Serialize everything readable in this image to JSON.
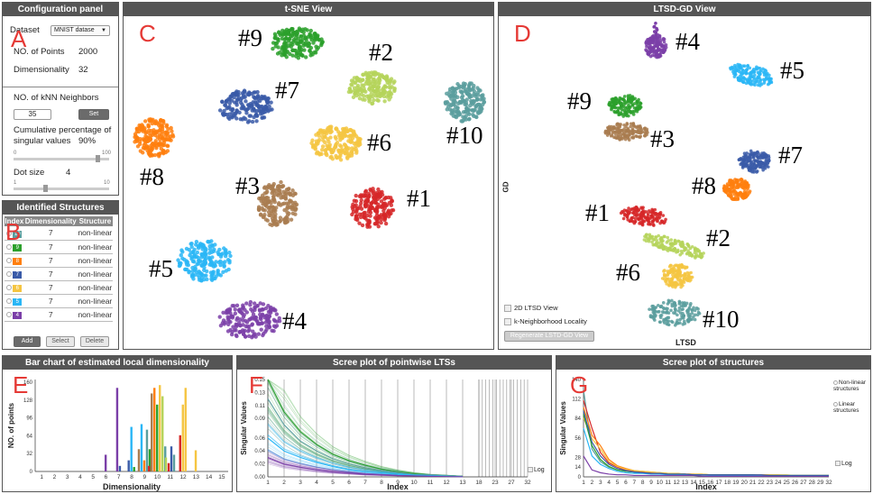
{
  "config": {
    "title": "Configuration panel",
    "dataset_label": "Dataset",
    "dataset_value": "MNIST datase",
    "points_label": "NO. of Points",
    "points_value": "2000",
    "dim_label": "Dimensionality",
    "dim_value": "32",
    "knn_label": "NO. of kNN Neighbors",
    "knn_value": "35",
    "set_label": "Set",
    "cum_label": "Cumulative percentage of singular values",
    "cum_value": "90%",
    "cum_min": "0",
    "cum_max": "100",
    "cum_level": 0.9,
    "dot_label": "Dot size",
    "dot_value": "4",
    "dot_min": "1",
    "dot_max": "10",
    "dot_level": 0.33
  },
  "structures": {
    "title": "Identified Structures",
    "headers": [
      "Index",
      "Dimensionality",
      "Structure"
    ],
    "rows": [
      {
        "idx": "10",
        "color": "#5a9e9e",
        "dim": "7",
        "type": "non-linear"
      },
      {
        "idx": "9",
        "color": "#2ca02c",
        "dim": "7",
        "type": "non-linear"
      },
      {
        "idx": "8",
        "color": "#ff7f0e",
        "dim": "7",
        "type": "non-linear"
      },
      {
        "idx": "7",
        "color": "#3a5ba8",
        "dim": "7",
        "type": "non-linear"
      },
      {
        "idx": "6",
        "color": "#f5c542",
        "dim": "7",
        "type": "non-linear"
      },
      {
        "idx": "5",
        "color": "#29b6f6",
        "dim": "7",
        "type": "non-linear"
      },
      {
        "idx": "4",
        "color": "#7b3fa8",
        "dim": "7",
        "type": "non-linear"
      }
    ],
    "add_label": "Add",
    "select_label": "Select",
    "delete_label": "Delete"
  },
  "tsne": {
    "title": "t-SNE View",
    "clusters": [
      {
        "label": "#9",
        "color": "#2ca02c"
      },
      {
        "label": "#2",
        "color": "#b5d35a"
      },
      {
        "label": "#7",
        "color": "#3a5ba8"
      },
      {
        "label": "#10",
        "color": "#5a9e9e"
      },
      {
        "label": "#6",
        "color": "#f5c542"
      },
      {
        "label": "#8",
        "color": "#ff7f0e"
      },
      {
        "label": "#3",
        "color": "#a97c50"
      },
      {
        "label": "#1",
        "color": "#d62728"
      },
      {
        "label": "#5",
        "color": "#29b6f6"
      },
      {
        "label": "#4",
        "color": "#7b3fa8"
      }
    ]
  },
  "ltsd": {
    "title": "LTSD-GD View",
    "ylabel": "GD",
    "xlabel": "LTSD",
    "opt1": "2D LTSD View",
    "opt2": "k-Neighborhood Locality",
    "regen": "Regenerate LSTD-GD View",
    "clusters": [
      {
        "label": "#4",
        "color": "#7b3fa8"
      },
      {
        "label": "#5",
        "color": "#29b6f6"
      },
      {
        "label": "#9",
        "color": "#2ca02c"
      },
      {
        "label": "#3",
        "color": "#a97c50"
      },
      {
        "label": "#7",
        "color": "#3a5ba8"
      },
      {
        "label": "#8",
        "color": "#ff7f0e"
      },
      {
        "label": "#1",
        "color": "#d62728"
      },
      {
        "label": "#2",
        "color": "#b5d35a"
      },
      {
        "label": "#6",
        "color": "#f5c542"
      },
      {
        "label": "#10",
        "color": "#5a9e9e"
      }
    ]
  },
  "letters": {
    "a": "A",
    "b": "B",
    "c": "C",
    "d": "D",
    "e": "E",
    "f": "F",
    "g": "G"
  },
  "chart_data": [
    {
      "type": "bar",
      "title": "Bar chart of estimated local dimensionality",
      "xlabel": "Dimensionality",
      "ylabel": "NO. of points",
      "categories": [
        "1",
        "2",
        "3",
        "4",
        "5",
        "6",
        "7",
        "8",
        "9",
        "10",
        "11",
        "12",
        "13",
        "14",
        "15"
      ],
      "yticks": [
        "0",
        "32",
        "64",
        "96",
        "128",
        "160"
      ],
      "ylim": [
        0,
        165
      ],
      "groups": [
        {
          "cat": 6,
          "bars": [
            {
              "color": "#7b3fa8",
              "value": 30
            }
          ]
        },
        {
          "cat": 7,
          "bars": [
            {
              "color": "#7b3fa8",
              "value": 150
            },
            {
              "color": "#3a5ba8",
              "value": 10
            }
          ]
        },
        {
          "cat": 8,
          "bars": [
            {
              "color": "#3a5ba8",
              "value": 20
            },
            {
              "color": "#29b6f6",
              "value": 80
            },
            {
              "color": "#2ca02c",
              "value": 8
            }
          ]
        },
        {
          "cat": 9,
          "bars": [
            {
              "color": "#a97c50",
              "value": 40
            },
            {
              "color": "#29b6f6",
              "value": 85
            },
            {
              "color": "#ff7f0e",
              "value": 20
            },
            {
              "color": "#5a9e9e",
              "value": 75
            },
            {
              "color": "#2ca02c",
              "value": 40
            }
          ]
        },
        {
          "cat": 10,
          "bars": [
            {
              "color": "#d62728",
              "value": 10
            },
            {
              "color": "#a97c50",
              "value": 140
            },
            {
              "color": "#ff7f0e",
              "value": 150
            },
            {
              "color": "#2ca02c",
              "value": 120
            },
            {
              "color": "#f5c542",
              "value": 155
            },
            {
              "color": "#b5d35a",
              "value": 135
            },
            {
              "color": "#5a9e9e",
              "value": 45
            }
          ]
        },
        {
          "cat": 11,
          "bars": [
            {
              "color": "#b5d35a",
              "value": 25
            },
            {
              "color": "#d62728",
              "value": 15
            },
            {
              "color": "#3a5ba8",
              "value": 45
            },
            {
              "color": "#5a9e9e",
              "value": 30
            }
          ]
        },
        {
          "cat": 12,
          "bars": [
            {
              "color": "#d62728",
              "value": 65
            },
            {
              "color": "#f5c542",
              "value": 120
            },
            {
              "color": "#f5c542",
              "value": 150
            }
          ]
        },
        {
          "cat": 13,
          "bars": [
            {
              "color": "#f5c542",
              "value": 38
            }
          ]
        }
      ]
    },
    {
      "type": "line",
      "title": "Scree plot of pointwise LTSs",
      "xlabel": "Index",
      "ylabel": "Singular Values",
      "xticks": [
        "1",
        "2",
        "3",
        "4",
        "5",
        "6",
        "7",
        "8",
        "9",
        "10",
        "11",
        "12",
        "13",
        "18",
        "23",
        "27",
        "32"
      ],
      "yticks": [
        "0.00",
        "0.02",
        "0.04",
        "0.06",
        "0.09",
        "0.11",
        "0.13",
        "0.15"
      ],
      "ylim": [
        0,
        0.15
      ],
      "series": [
        {
          "color": "#2ca02c",
          "values": [
            0.15,
            0.1,
            0.07,
            0.05,
            0.035,
            0.025,
            0.018,
            0.012,
            0.008,
            0.005,
            0.003,
            0.002,
            0.001
          ]
        },
        {
          "color": "#5a9e9e",
          "values": [
            0.12,
            0.08,
            0.055,
            0.04,
            0.028,
            0.02,
            0.014,
            0.01,
            0.007,
            0.004,
            0.003,
            0.002,
            0.001
          ]
        },
        {
          "color": "#29b6f6",
          "values": [
            0.06,
            0.04,
            0.03,
            0.022,
            0.016,
            0.011,
            0.008,
            0.006,
            0.004,
            0.003,
            0.002,
            0.001,
            0.0005
          ]
        },
        {
          "color": "#7b3fa8",
          "values": [
            0.03,
            0.02,
            0.015,
            0.011,
            0.008,
            0.006,
            0.004,
            0.003,
            0.002,
            0.0015,
            0.001,
            0.0006,
            0.0003
          ]
        }
      ],
      "log_label": "Log"
    },
    {
      "type": "line",
      "title": "Scree plot of structures",
      "xlabel": "Index",
      "ylabel": "Singular Values",
      "xticks": [
        "1",
        "2",
        "3",
        "4",
        "5",
        "6",
        "7",
        "8",
        "9",
        "10",
        "11",
        "12",
        "13",
        "14",
        "15",
        "16",
        "17",
        "18",
        "19",
        "20",
        "21",
        "22",
        "23",
        "24",
        "25",
        "26",
        "27",
        "28",
        "29",
        "32"
      ],
      "yticks": [
        "0",
        "14",
        "28",
        "56",
        "84",
        "112",
        "140"
      ],
      "ylim": [
        0,
        140
      ],
      "series": [
        {
          "color": "#5a9e9e",
          "values": [
            125,
            40,
            22,
            14,
            10,
            8,
            7,
            6,
            5,
            5,
            4,
            4,
            4,
            3,
            3,
            3,
            3,
            3,
            3,
            3,
            3,
            3,
            3,
            2,
            2,
            2,
            2,
            2,
            2,
            2
          ]
        },
        {
          "color": "#d62728",
          "values": [
            110,
            70,
            35,
            20,
            14,
            10,
            8,
            7,
            6,
            5,
            5,
            4,
            4,
            4,
            3,
            3,
            3,
            3,
            3,
            3,
            3,
            3,
            3,
            2,
            2,
            2,
            2,
            2,
            2,
            2
          ]
        },
        {
          "color": "#ff7f0e",
          "values": [
            100,
            60,
            45,
            25,
            16,
            12,
            9,
            8,
            7,
            6,
            5,
            5,
            4,
            4,
            4,
            3,
            3,
            3,
            3,
            3,
            3,
            3,
            3,
            3,
            2,
            2,
            2,
            2,
            2,
            2
          ]
        },
        {
          "color": "#f5c542",
          "values": [
            85,
            55,
            40,
            22,
            15,
            11,
            9,
            8,
            7,
            6,
            5,
            5,
            4,
            4,
            4,
            3,
            3,
            3,
            3,
            3,
            3,
            3,
            3,
            3,
            3,
            2,
            2,
            2,
            2,
            2
          ]
        },
        {
          "color": "#2ca02c",
          "values": [
            90,
            45,
            25,
            15,
            10,
            8,
            7,
            6,
            5,
            5,
            4,
            4,
            4,
            3,
            3,
            3,
            3,
            3,
            3,
            3,
            3,
            2,
            2,
            2,
            2,
            2,
            2,
            2,
            2,
            2
          ]
        },
        {
          "color": "#29b6f6",
          "values": [
            70,
            30,
            18,
            12,
            8,
            6,
            5,
            5,
            4,
            4,
            3,
            3,
            3,
            3,
            3,
            2,
            2,
            2,
            2,
            2,
            2,
            2,
            2,
            2,
            2,
            2,
            2,
            2,
            2,
            2
          ]
        },
        {
          "color": "#7b3fa8",
          "values": [
            30,
            10,
            6,
            4,
            3,
            3,
            2,
            2,
            2,
            2,
            2,
            2,
            2,
            2,
            1,
            1,
            1,
            1,
            1,
            1,
            1,
            1,
            1,
            1,
            1,
            1,
            1,
            1,
            1,
            1
          ]
        },
        {
          "color": "#3a5ba8",
          "values": [
            95,
            50,
            30,
            18,
            12,
            9,
            7,
            6,
            5,
            5,
            4,
            4,
            4,
            3,
            3,
            3,
            3,
            3,
            3,
            3,
            3,
            3,
            2,
            2,
            2,
            2,
            2,
            2,
            2,
            2
          ]
        }
      ],
      "legend": [
        "Non-linear structures",
        "Linear structures"
      ],
      "log_label": "Log"
    }
  ]
}
